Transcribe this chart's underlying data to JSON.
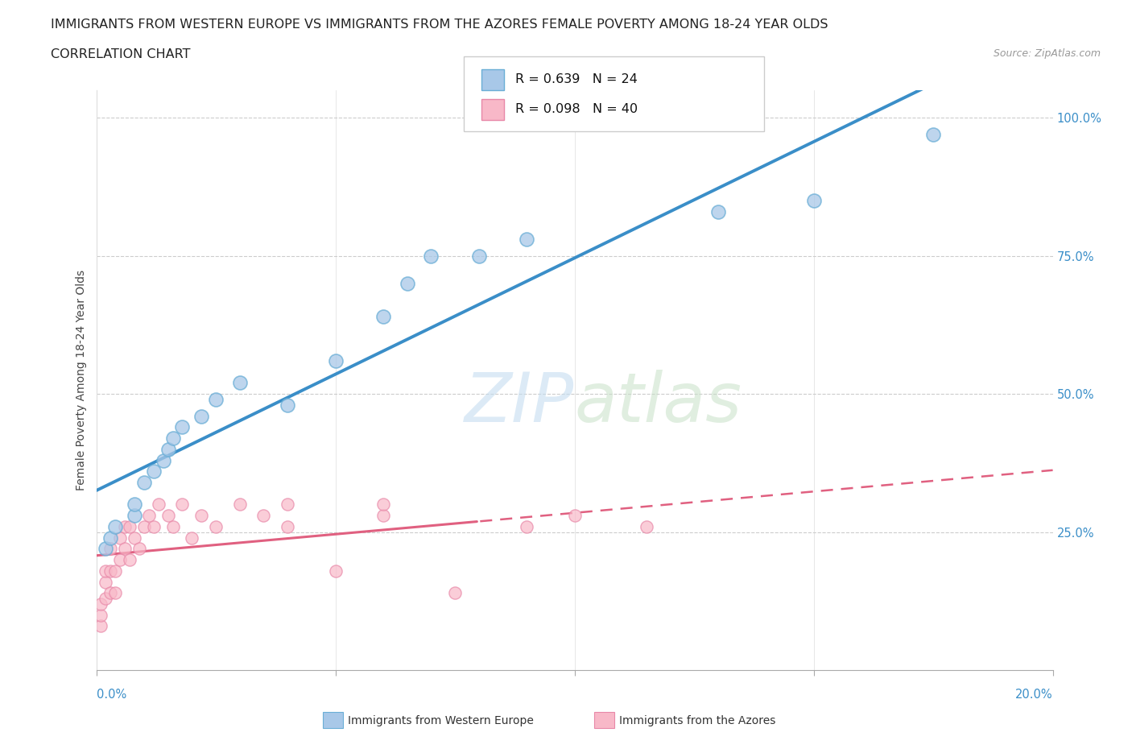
{
  "title_line1": "IMMIGRANTS FROM WESTERN EUROPE VS IMMIGRANTS FROM THE AZORES FEMALE POVERTY AMONG 18-24 YEAR OLDS",
  "title_line2": "CORRELATION CHART",
  "source": "Source: ZipAtlas.com",
  "ylabel": "Female Poverty Among 18-24 Year Olds",
  "legend_label1": "Immigrants from Western Europe",
  "legend_label2": "Immigrants from the Azores",
  "R1": 0.639,
  "N1": 24,
  "R2": 0.098,
  "N2": 40,
  "color_blue": "#a8c8e8",
  "color_blue_edge": "#6aaed6",
  "color_blue_line": "#3a8ec8",
  "color_pink": "#f8b8c8",
  "color_pink_edge": "#e888a8",
  "color_pink_line": "#e06080",
  "blue_points": [
    [
      0.002,
      0.22
    ],
    [
      0.003,
      0.24
    ],
    [
      0.004,
      0.26
    ],
    [
      0.008,
      0.28
    ],
    [
      0.008,
      0.3
    ],
    [
      0.01,
      0.34
    ],
    [
      0.012,
      0.36
    ],
    [
      0.014,
      0.38
    ],
    [
      0.015,
      0.4
    ],
    [
      0.016,
      0.42
    ],
    [
      0.018,
      0.44
    ],
    [
      0.022,
      0.46
    ],
    [
      0.025,
      0.49
    ],
    [
      0.03,
      0.52
    ],
    [
      0.04,
      0.48
    ],
    [
      0.05,
      0.56
    ],
    [
      0.06,
      0.64
    ],
    [
      0.065,
      0.7
    ],
    [
      0.07,
      0.75
    ],
    [
      0.08,
      0.75
    ],
    [
      0.09,
      0.78
    ],
    [
      0.13,
      0.83
    ],
    [
      0.15,
      0.85
    ],
    [
      0.175,
      0.97
    ]
  ],
  "pink_points": [
    [
      0.001,
      0.08
    ],
    [
      0.001,
      0.1
    ],
    [
      0.001,
      0.12
    ],
    [
      0.002,
      0.13
    ],
    [
      0.002,
      0.16
    ],
    [
      0.002,
      0.18
    ],
    [
      0.003,
      0.14
    ],
    [
      0.003,
      0.18
    ],
    [
      0.003,
      0.22
    ],
    [
      0.004,
      0.14
    ],
    [
      0.004,
      0.18
    ],
    [
      0.005,
      0.2
    ],
    [
      0.005,
      0.24
    ],
    [
      0.006,
      0.22
    ],
    [
      0.006,
      0.26
    ],
    [
      0.007,
      0.2
    ],
    [
      0.007,
      0.26
    ],
    [
      0.008,
      0.24
    ],
    [
      0.009,
      0.22
    ],
    [
      0.01,
      0.26
    ],
    [
      0.011,
      0.28
    ],
    [
      0.012,
      0.26
    ],
    [
      0.013,
      0.3
    ],
    [
      0.015,
      0.28
    ],
    [
      0.016,
      0.26
    ],
    [
      0.018,
      0.3
    ],
    [
      0.02,
      0.24
    ],
    [
      0.022,
      0.28
    ],
    [
      0.025,
      0.26
    ],
    [
      0.03,
      0.3
    ],
    [
      0.035,
      0.28
    ],
    [
      0.04,
      0.26
    ],
    [
      0.04,
      0.3
    ],
    [
      0.05,
      0.18
    ],
    [
      0.06,
      0.28
    ],
    [
      0.06,
      0.3
    ],
    [
      0.075,
      0.14
    ],
    [
      0.09,
      0.26
    ],
    [
      0.1,
      0.28
    ],
    [
      0.115,
      0.26
    ]
  ],
  "xlim": [
    0,
    0.2
  ],
  "ylim": [
    0,
    1.05
  ],
  "yticks": [
    0.25,
    0.5,
    0.75,
    1.0
  ],
  "ytick_labels": [
    "25.0%",
    "50.0%",
    "75.0%",
    "100.0%"
  ]
}
